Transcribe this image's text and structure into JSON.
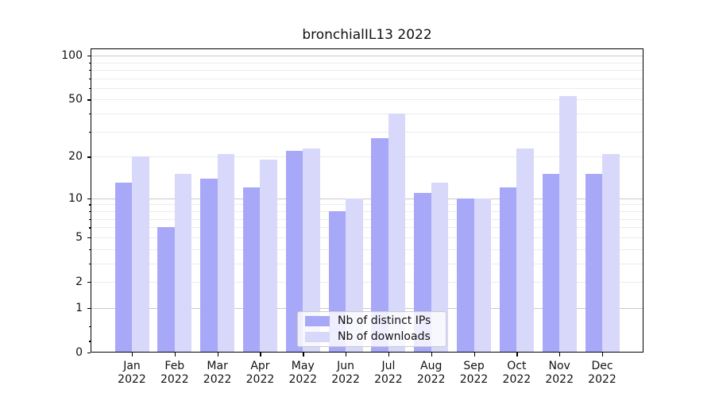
{
  "chart_data": {
    "type": "bar",
    "title": "bronchialIL13 2022",
    "xlabel": "",
    "ylabel": "",
    "grid": "on",
    "legend_position": "lower center",
    "yscale": "log1p",
    "ylim": [
      0,
      112
    ],
    "categories": [
      "Jan 2022",
      "Feb 2022",
      "Mar 2022",
      "Apr 2022",
      "May 2022",
      "Jun 2022",
      "Jul 2022",
      "Aug 2022",
      "Sep 2022",
      "Oct 2022",
      "Nov 2022",
      "Dec 2022"
    ],
    "month_labels": [
      {
        "month": "Jan",
        "year": "2022"
      },
      {
        "month": "Feb",
        "year": "2022"
      },
      {
        "month": "Mar",
        "year": "2022"
      },
      {
        "month": "Apr",
        "year": "2022"
      },
      {
        "month": "May",
        "year": "2022"
      },
      {
        "month": "Jun",
        "year": "2022"
      },
      {
        "month": "Jul",
        "year": "2022"
      },
      {
        "month": "Aug",
        "year": "2022"
      },
      {
        "month": "Sep",
        "year": "2022"
      },
      {
        "month": "Oct",
        "year": "2022"
      },
      {
        "month": "Nov",
        "year": "2022"
      },
      {
        "month": "Dec",
        "year": "2022"
      }
    ],
    "series": [
      {
        "name": "Nb of distinct IPs",
        "color": "#a8a8f8",
        "values": [
          13,
          6,
          14,
          12,
          22,
          8,
          27,
          11,
          10,
          12,
          15,
          15
        ]
      },
      {
        "name": "Nb of downloads",
        "color": "#d8d8fa",
        "values": [
          20,
          15,
          21,
          19,
          23,
          10,
          40,
          13,
          10,
          23,
          53,
          21
        ]
      }
    ],
    "yticks": [
      {
        "value": 0,
        "label": "0"
      },
      {
        "value": 1,
        "label": "1"
      },
      {
        "value": 2,
        "label": "2"
      },
      {
        "value": 5,
        "label": "5"
      },
      {
        "value": 10,
        "label": "10"
      },
      {
        "value": 20,
        "label": "20"
      },
      {
        "value": 50,
        "label": "50"
      },
      {
        "value": 100,
        "label": "100"
      }
    ],
    "grid_major": [
      1,
      10,
      100
    ],
    "grid_minor": [
      2,
      3,
      4,
      5,
      6,
      7,
      8,
      9,
      20,
      30,
      40,
      50,
      60,
      70,
      80,
      90
    ],
    "minor_ticks_below_one": [
      0.2,
      0.5
    ],
    "colors": {
      "grid_major": "#c9c9c9",
      "grid_minor": "#ececec",
      "axis": "#000000",
      "text": "#111111",
      "legend_border": "#cccccc"
    }
  }
}
